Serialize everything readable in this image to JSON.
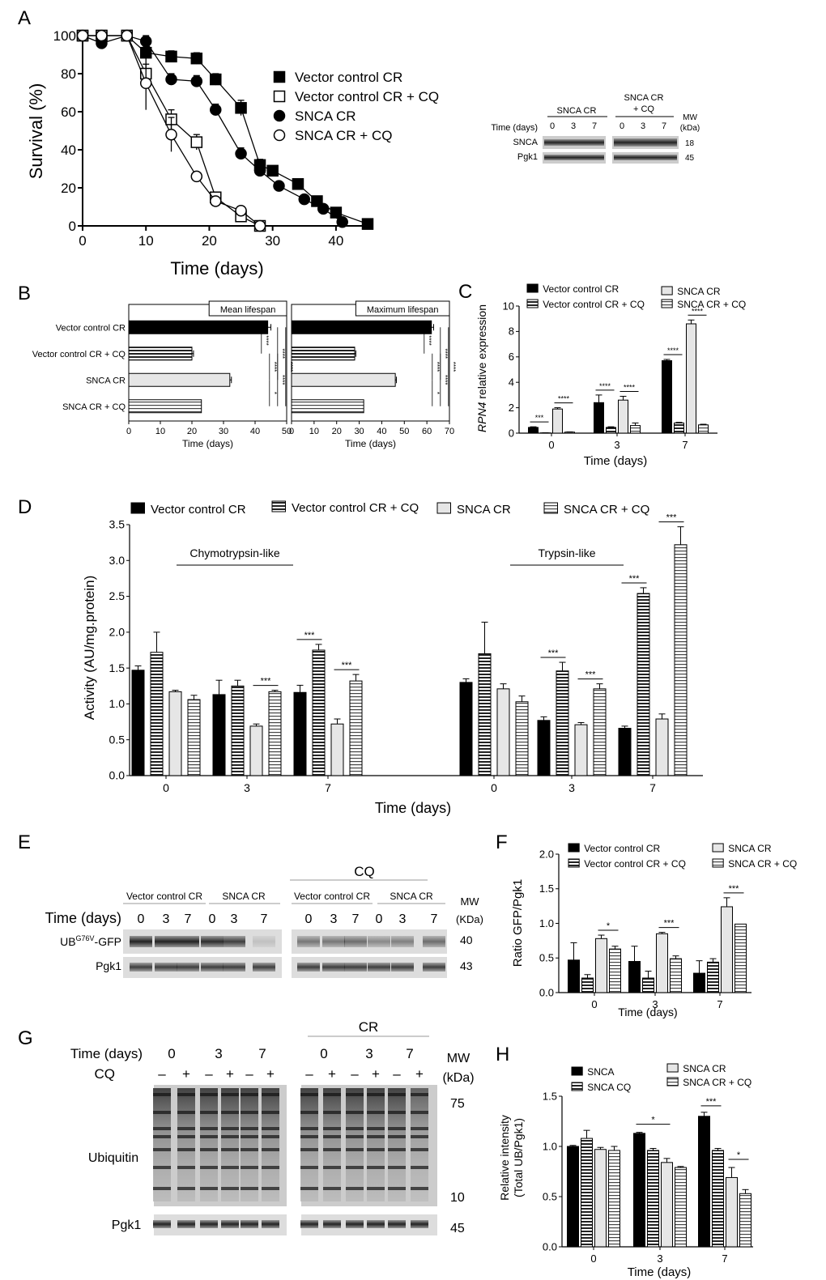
{
  "panels": {
    "A": {
      "letter": "A",
      "chart_data": {
        "type": "line",
        "xlabel": "Time (days)",
        "ylabel": "Survival (%)",
        "xlim": [
          0,
          45
        ],
        "ylim": [
          0,
          100
        ],
        "xticks": [
          0,
          10,
          20,
          30,
          40
        ],
        "yticks": [
          0,
          20,
          40,
          60,
          80,
          100
        ],
        "series": [
          {
            "name": "Vector control CR",
            "marker": "square-filled",
            "x": [
              0,
              3,
              7,
              10,
              14,
              18,
              21,
              25,
              28,
              30,
              34,
              37,
              40,
              45
            ],
            "y": [
              100,
              100,
              100,
              91,
              89,
              88,
              77,
              62,
              32,
              29,
              22,
              13,
              7,
              1
            ],
            "err": [
              0,
              0,
              0,
              3,
              3,
              3,
              3,
              4,
              3,
              2,
              2,
              2,
              2,
              0
            ]
          },
          {
            "name": "Vector control CR + CQ",
            "marker": "square-open",
            "x": [
              0,
              3,
              7,
              10,
              14,
              18,
              21,
              25,
              28
            ],
            "y": [
              100,
              100,
              100,
              80,
              56,
              44,
              15,
              5,
              0
            ],
            "err": [
              0,
              0,
              0,
              5,
              5,
              4,
              2,
              2,
              0
            ]
          },
          {
            "name": "SNCA CR",
            "marker": "circle-filled",
            "x": [
              0,
              3,
              7,
              10,
              14,
              18,
              21,
              25,
              28,
              31,
              35,
              38,
              41
            ],
            "y": [
              100,
              96,
              100,
              97,
              77,
              76,
              61,
              38,
              29,
              21,
              14,
              9,
              2
            ],
            "err": [
              0,
              3,
              0,
              3,
              3,
              3,
              3,
              3,
              2,
              2,
              2,
              2,
              0
            ]
          },
          {
            "name": "SNCA CR + CQ",
            "marker": "circle-open",
            "x": [
              0,
              3,
              7,
              10,
              14,
              18,
              21,
              25,
              28
            ],
            "y": [
              100,
              100,
              100,
              75,
              48,
              26,
              13,
              8,
              0
            ],
            "err": [
              0,
              0,
              0,
              14,
              9,
              2,
              1,
              2,
              0
            ]
          }
        ]
      },
      "blot": {
        "group1": "SNCA CR",
        "group2": "SNCA CR\n+ CQ",
        "time_label": "Time (days)",
        "times": [
          "0",
          "3",
          "7"
        ],
        "rows": [
          "SNCA",
          "Pgk1"
        ],
        "mw_header": "MW\n(kDa)",
        "mw": [
          "18",
          "45"
        ]
      }
    },
    "B": {
      "letter": "B",
      "chart_data": [
        {
          "type": "bar",
          "orientation": "horizontal",
          "title": "Mean lifespan",
          "categories": [
            "Vector control CR",
            "Vector control CR + CQ",
            "SNCA CR",
            "SNCA CR + CQ"
          ],
          "values": [
            44,
            20,
            32,
            23
          ],
          "err": [
            1,
            0.5,
            0.5,
            0
          ],
          "xlabel": "Time (days)",
          "xlim": [
            0,
            50
          ],
          "xticks": [
            0,
            10,
            20,
            30,
            40,
            50
          ],
          "significance": [
            "****",
            "****",
            "****",
            "*",
            "****",
            "****"
          ]
        },
        {
          "type": "bar",
          "orientation": "horizontal",
          "title": "Maximum lifespan",
          "categories": [
            "Vector control CR",
            "Vector control CR + CQ",
            "SNCA CR",
            "SNCA CR + CQ"
          ],
          "values": [
            62,
            28,
            46,
            32
          ],
          "err": [
            1,
            0.5,
            0.5,
            0
          ],
          "xlabel": "Time (days)",
          "xlim": [
            0,
            70
          ],
          "xticks": [
            0,
            10,
            20,
            30,
            40,
            50,
            60,
            70
          ],
          "significance": [
            "****",
            "****",
            "****",
            "*",
            "****",
            "****"
          ]
        }
      ]
    },
    "C": {
      "letter": "C",
      "chart_data": {
        "type": "bar",
        "ylabel": "RPN4 relative expression",
        "xlabel": "Time (days)",
        "categories": [
          "0",
          "3",
          "7"
        ],
        "ylim": [
          0,
          10
        ],
        "yticks": [
          0,
          2,
          4,
          6,
          8,
          10
        ],
        "series": [
          {
            "name": "Vector control CR",
            "values": [
              0.45,
              2.4,
              5.7
            ],
            "err": [
              0.05,
              0.6,
              0.1
            ]
          },
          {
            "name": "Vector control CR + CQ",
            "values": [
              0.02,
              0.45,
              0.8
            ],
            "err": [
              0.01,
              0.05,
              0.05
            ]
          },
          {
            "name": "SNCA CR",
            "values": [
              1.9,
              2.6,
              8.6
            ],
            "err": [
              0.1,
              0.3,
              0.3
            ]
          },
          {
            "name": "SNCA CR + CQ",
            "values": [
              0.08,
              0.6,
              0.65
            ],
            "err": [
              0.02,
              0.2,
              0.05
            ]
          }
        ],
        "significance": [
          "***",
          "****",
          "****",
          "****",
          "****",
          "****"
        ]
      }
    },
    "D": {
      "letter": "D",
      "chart_data": {
        "type": "bar",
        "ylabel": "Activity (AU/mg.protein)",
        "xlabel": "Time (days)",
        "groups": [
          "Chymotrypsin-like",
          "Trypsin-like"
        ],
        "categories": [
          "0",
          "3",
          "7",
          "0",
          "3",
          "7"
        ],
        "ylim": [
          0,
          3.5
        ],
        "yticks": [
          "0.0",
          "0.5",
          "1.0",
          "1.5",
          "2.0",
          "2.5",
          "3.0",
          "3.5"
        ],
        "series": [
          {
            "name": "Vector control CR",
            "values": [
              1.47,
              1.13,
              1.16,
              1.3,
              0.77,
              0.66
            ],
            "err": [
              0.06,
              0.2,
              0.1,
              0.05,
              0.05,
              0.03
            ]
          },
          {
            "name": "Vector control CR + CQ",
            "values": [
              1.72,
              1.25,
              1.75,
              1.7,
              1.46,
              2.54
            ],
            "err": [
              0.28,
              0.08,
              0.08,
              0.44,
              0.12,
              0.08
            ]
          },
          {
            "name": "SNCA  CR",
            "values": [
              1.17,
              0.69,
              0.72,
              1.21,
              0.71,
              0.79
            ],
            "err": [
              0.02,
              0.03,
              0.07,
              0.07,
              0.03,
              0.07
            ]
          },
          {
            "name": "SNCA CR + CQ",
            "values": [
              1.06,
              1.17,
              1.32,
              1.03,
              1.21,
              3.22
            ],
            "err": [
              0.06,
              0.02,
              0.09,
              0.08,
              0.07,
              0.25
            ]
          }
        ],
        "significance": [
          "***",
          "***",
          "***",
          "***",
          "***",
          "***",
          "***"
        ]
      }
    },
    "E": {
      "letter": "E",
      "blot": {
        "cq_label": "CQ",
        "group_a": "Vector control CR",
        "group_b": "SNCA  CR",
        "time_label": "Time (days)",
        "times": [
          "0",
          "3",
          "7",
          "0",
          "3",
          "7",
          "0",
          "3",
          "7",
          "0",
          "3",
          "7"
        ],
        "row1_main": "UB",
        "row1_sup": "G76V",
        "row1_suffix": "-GFP",
        "row2": "Pgk1",
        "mw_header": "MW\n(KDa)",
        "mw": [
          "40",
          "43"
        ]
      }
    },
    "F": {
      "letter": "F",
      "chart_data": {
        "type": "bar",
        "ylabel": "Ratio GFP/Pgk1",
        "xlabel": "Time (days)",
        "categories": [
          "0",
          "3",
          "7"
        ],
        "ylim": [
          0,
          2.0
        ],
        "yticks": [
          "0.0",
          "0.5",
          "1.0",
          "1.5",
          "2.0"
        ],
        "series": [
          {
            "name": "Vector control CR",
            "values": [
              0.47,
              0.45,
              0.28
            ],
            "err": [
              0.25,
              0.22,
              0.18
            ]
          },
          {
            "name": "Vector control CR + CQ",
            "values": [
              0.21,
              0.21,
              0.44
            ],
            "err": [
              0.05,
              0.1,
              0.05
            ]
          },
          {
            "name": "SNCA CR",
            "values": [
              0.78,
              0.85,
              1.24
            ],
            "err": [
              0.05,
              0.02,
              0.13
            ]
          },
          {
            "name": "SNCA CR + CQ",
            "values": [
              0.63,
              0.49,
              0.99
            ],
            "err": [
              0.04,
              0.04,
              0
            ]
          }
        ],
        "significance": [
          "*",
          "***",
          "***"
        ]
      }
    },
    "G": {
      "letter": "G",
      "blot": {
        "cr_label": "CR",
        "time_label": "Time (days)",
        "times": [
          "0",
          "3",
          "7",
          "0",
          "3",
          "7"
        ],
        "cq_label": "CQ",
        "cq_signs": [
          "–",
          "+",
          "–",
          "+",
          "–",
          "+",
          "–",
          "+",
          "–",
          "+",
          "–",
          "+"
        ],
        "mw_header": "MW\n(kDa)",
        "mw": [
          "75",
          "10",
          "45"
        ],
        "row1": "Ubiquitin",
        "row2": "Pgk1"
      }
    },
    "H": {
      "letter": "H",
      "chart_data": {
        "type": "bar",
        "ylabel": "Relative intensity\n(Total UB/Pgk1)",
        "xlabel": "Time (days)",
        "categories": [
          "0",
          "3",
          "7"
        ],
        "ylim": [
          0,
          1.5
        ],
        "yticks": [
          "0.0",
          "0.5",
          "1.0",
          "1.5"
        ],
        "series": [
          {
            "name": "SNCA",
            "values": [
              1.0,
              1.13,
              1.3
            ],
            "err": [
              0.01,
              0.01,
              0.04
            ]
          },
          {
            "name": "SNCA CQ",
            "values": [
              1.08,
              0.96,
              0.96
            ],
            "err": [
              0.08,
              0.02,
              0.02
            ]
          },
          {
            "name": "SNCA CR",
            "values": [
              0.97,
              0.84,
              0.69
            ],
            "err": [
              0.02,
              0.04,
              0.1
            ]
          },
          {
            "name": "SNCA CR + CQ",
            "values": [
              0.96,
              0.79,
              0.53
            ],
            "err": [
              0.04,
              0.01,
              0.04
            ]
          }
        ],
        "significance": [
          "*",
          "***",
          "*"
        ]
      }
    }
  }
}
